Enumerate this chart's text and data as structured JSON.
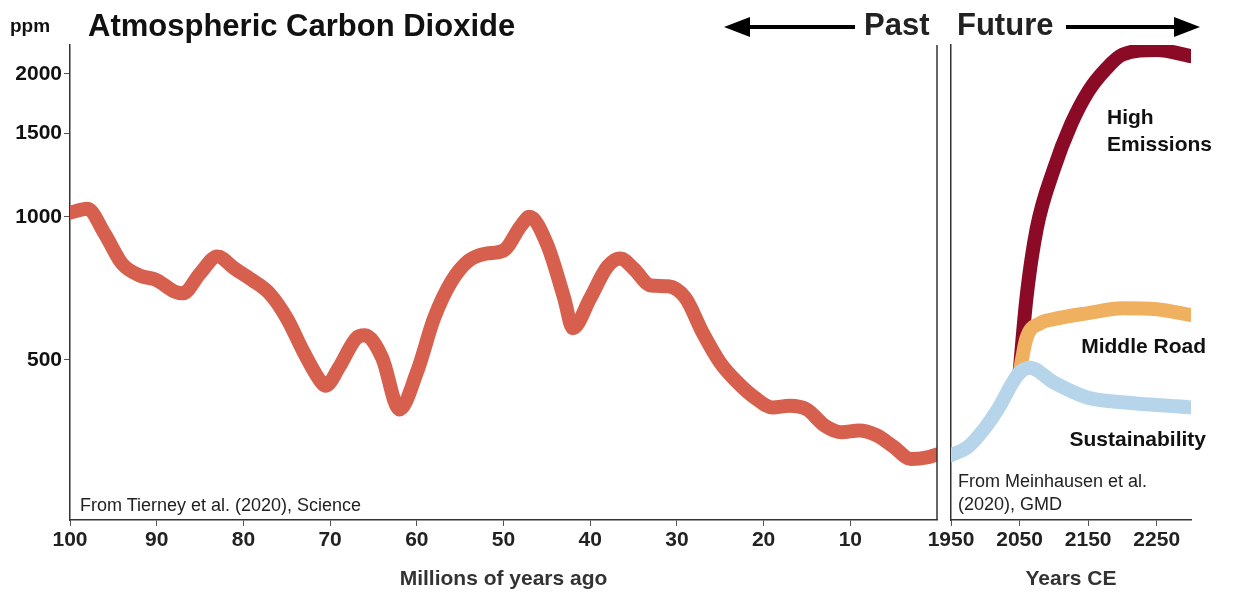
{
  "chart_data": [
    {
      "type": "line",
      "title": "Atmospheric Carbon Dioxide",
      "ylabel": "ppm",
      "xlabel": "Millions of years ago",
      "log": true,
      "xlim": [
        100,
        0
      ],
      "xticks": [
        100,
        90,
        80,
        70,
        60,
        50,
        40,
        30,
        20,
        10
      ],
      "ylim": [
        230,
        2300
      ],
      "yticks": [
        500,
        1000,
        1500,
        2000
      ],
      "grid": false,
      "legend": false,
      "marker": "none",
      "annotations": [
        "From Tierney et al. (2020), Science",
        "Past"
      ],
      "series": [
        {
          "color": "#d6604d",
          "x": [
            100,
            98,
            96,
            94,
            92,
            90,
            88,
            87,
            85,
            83,
            81,
            79,
            77,
            75,
            73,
            71,
            70.5,
            69,
            67,
            66,
            64,
            62,
            60,
            58,
            56,
            54,
            52,
            50,
            48,
            47,
            45,
            43,
            42,
            40,
            38,
            36.5,
            35,
            33,
            31,
            29,
            27,
            25,
            23,
            21,
            19,
            17,
            15,
            13,
            11,
            9,
            7,
            5,
            3,
            1,
            0
          ],
          "values": [
            1020,
            1040,
            921,
            797,
            753,
            736,
            697,
            690,
            760,
            825,
            778,
            736,
            690,
            612,
            517,
            448,
            441,
            481,
            555,
            563,
            505,
            393,
            470,
            612,
            731,
            809,
            837,
            849,
            957,
            1000,
            878,
            674,
            583,
            674,
            786,
            817,
            778,
            717,
            714,
            674,
            569,
            493,
            448,
            416,
            397,
            400,
            393,
            364,
            352,
            355,
            347,
            328,
            309,
            312,
            316
          ]
        }
      ]
    },
    {
      "type": "line",
      "xlabel": "Years CE",
      "log": true,
      "xlim": [
        1950,
        2300
      ],
      "xticks": [
        1950,
        2050,
        2150,
        2250
      ],
      "ylim": [
        230,
        2300
      ],
      "tick_labels": "x",
      "grid": false,
      "legend": false,
      "marker": "none",
      "annotations": [
        "From Meinhausen et al. (2020), GMD",
        "Future"
      ],
      "series": [
        {
          "name": "Sustainability",
          "color": "#b7d5ea",
          "x": [
            1950,
            1975,
            2000,
            2020,
            2040,
            2050,
            2065,
            2100,
            2150,
            2200,
            2300
          ],
          "values": [
            315,
            328,
            360,
            397,
            448,
            470,
            481,
            448,
            416,
            407,
            397
          ]
        },
        {
          "name": "Middle Road",
          "color": "#efb060",
          "x": [
            2050,
            2060,
            2080,
            2100,
            2150,
            2200,
            2250,
            2300
          ],
          "values": [
            470,
            555,
            597,
            609,
            627,
            642,
            639,
            621
          ]
        },
        {
          "name": "High Emissions",
          "color": "#8b0a26",
          "x": [
            2050,
            2060,
            2075,
            2100,
            2125,
            2150,
            2175,
            2200,
            2250,
            2300
          ],
          "values": [
            470,
            674,
            944,
            1260,
            1565,
            1835,
            2040,
            2195,
            2245,
            2180
          ]
        }
      ]
    }
  ]
}
